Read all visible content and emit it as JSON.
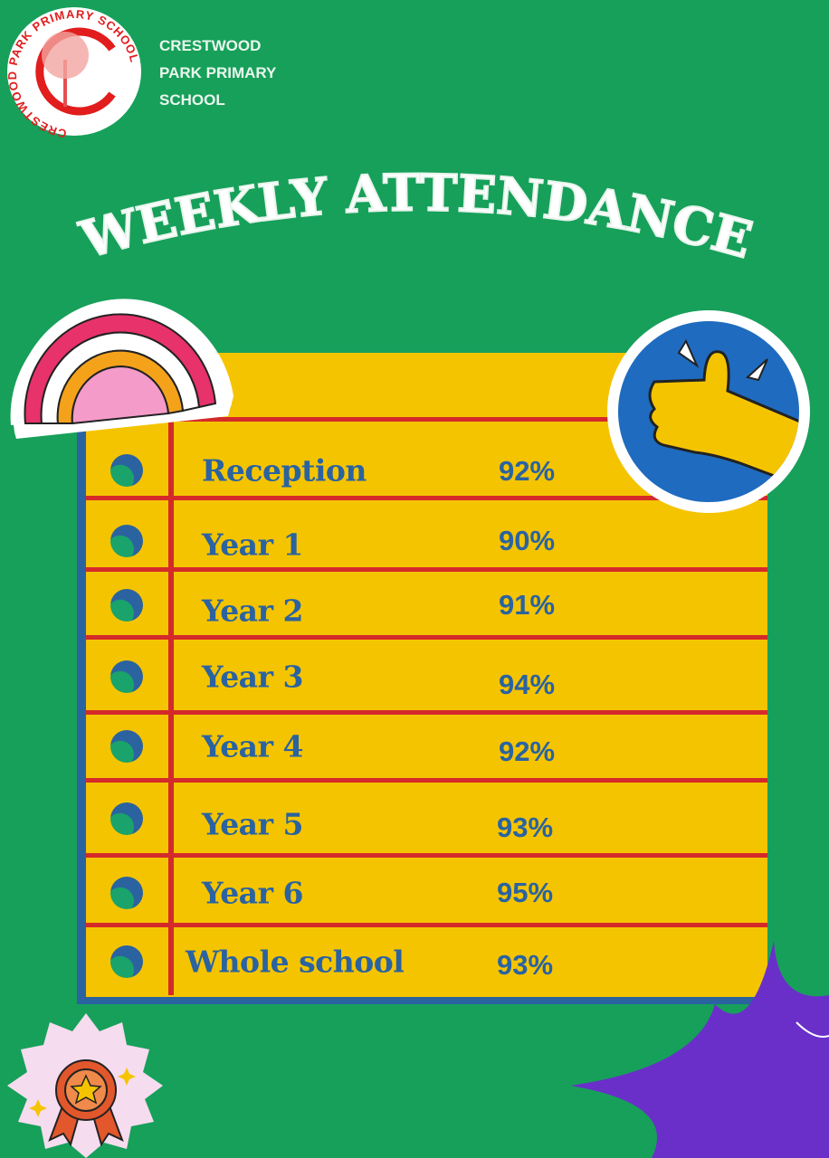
{
  "header": {
    "logo_text": "CRESTWOOD PARK PRIMARY SCHOOL",
    "school_name_lines": [
      "CRESTWOOD",
      "PARK PRIMARY",
      "SCHOOL"
    ]
  },
  "title": "WEEKLY ATTENDANCE",
  "colors": {
    "background": "#17a05a",
    "panel": "#f5c400",
    "lines": "#d42a2a",
    "text": "#2a63a0",
    "star": "#6a2fc9"
  },
  "rows": [
    {
      "label": "Reception",
      "value": "92%"
    },
    {
      "label": "Year 1",
      "value": "90%"
    },
    {
      "label": "Year 2",
      "value": "91%"
    },
    {
      "label": "Year 3",
      "value": "94%"
    },
    {
      "label": "Year 4",
      "value": "92%"
    },
    {
      "label": "Year 5",
      "value": "93%"
    },
    {
      "label": "Year 6",
      "value": "95%"
    },
    {
      "label": "Whole school",
      "value": "93%"
    }
  ],
  "icons": [
    "school-logo",
    "rainbow-sticker",
    "thumbs-up-sticker",
    "award-sticker",
    "star-burst"
  ]
}
